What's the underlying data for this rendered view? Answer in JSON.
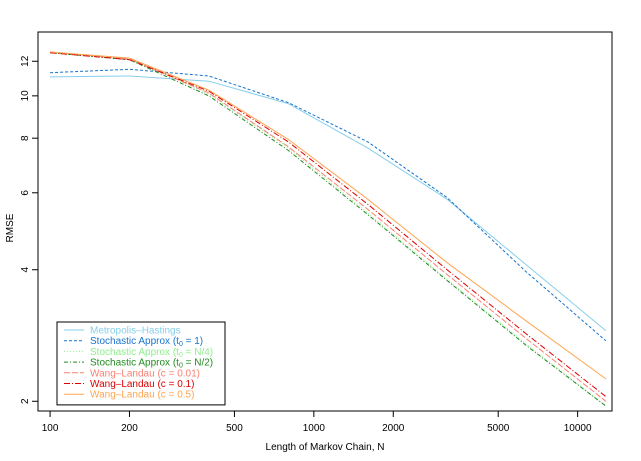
{
  "chart_data": {
    "type": "line",
    "title": "",
    "xlabel": "Length of Markov Chain, N",
    "ylabel": "RMSE",
    "x_scale": "log",
    "y_scale": "log",
    "xlim": [
      90,
      13500
    ],
    "ylim": [
      1.9,
      14.0
    ],
    "x_ticks": [
      100,
      200,
      500,
      1000,
      2000,
      5000,
      10000
    ],
    "y_ticks": [
      2,
      4,
      6,
      8,
      10,
      12
    ],
    "grid": false,
    "legend_position": "bottom-left",
    "x": [
      100,
      200,
      400,
      800,
      1600,
      3200,
      6400,
      12800
    ],
    "series": [
      {
        "name": "Metropolis–Hastings",
        "label_main": "Metropolis–Hastings",
        "label_sub": "",
        "label_tail": "",
        "color": "#87CEEB",
        "dash": "solid",
        "values": [
          11.05,
          11.1,
          10.8,
          9.6,
          7.6,
          5.8,
          4.1,
          2.9
        ]
      },
      {
        "name": "Stochastic Approx (t0 = 1)",
        "label_main": "Stochastic Approx (t",
        "label_sub": "0",
        "label_tail": " = 1)",
        "color": "#1874CD",
        "dash": "3,2",
        "values": [
          11.3,
          11.5,
          11.1,
          9.65,
          7.85,
          5.85,
          3.95,
          2.75
        ]
      },
      {
        "name": "Stochastic Approx (t0 = N/4)",
        "label_main": "Stochastic Approx (t",
        "label_sub": "0",
        "label_tail": " = N/4)",
        "color": "#90EE90",
        "dash": "1,2",
        "values": [
          12.6,
          12.2,
          10.1,
          7.6,
          5.4,
          3.8,
          2.7,
          1.95
        ]
      },
      {
        "name": "Stochastic Approx (t0 = N/2)",
        "label_main": "Stochastic Approx (t",
        "label_sub": "0",
        "label_tail": " = N/2)",
        "color": "#228B22",
        "dash": "4,2,1,2",
        "values": [
          12.55,
          12.1,
          10.0,
          7.5,
          5.35,
          3.78,
          2.68,
          1.95
        ]
      },
      {
        "name": "Wang–Landau (c = 0.01)",
        "label_main": "Wang–Landau (c = 0.01)",
        "label_sub": "",
        "label_tail": "",
        "color": "#FA8072",
        "dash": "6,2",
        "values": [
          12.6,
          12.15,
          10.15,
          7.65,
          5.5,
          3.9,
          2.78,
          2.0
        ]
      },
      {
        "name": "Wang–Landau (c = 0.1)",
        "label_main": "Wang–Landau (c = 0.1)",
        "label_sub": "",
        "label_tail": "",
        "color": "#DD0000",
        "dash": "6,2,1,2",
        "values": [
          12.55,
          12.1,
          10.25,
          7.85,
          5.65,
          4.0,
          2.85,
          2.05
        ]
      },
      {
        "name": "Wang–Landau (c = 0.5)",
        "label_main": "Wang–Landau (c = 0.5)",
        "label_sub": "",
        "label_tail": "",
        "color": "#FFA54F",
        "dash": "solid",
        "values": [
          12.6,
          12.2,
          10.3,
          7.95,
          5.8,
          4.15,
          3.05,
          2.25
        ]
      }
    ]
  }
}
